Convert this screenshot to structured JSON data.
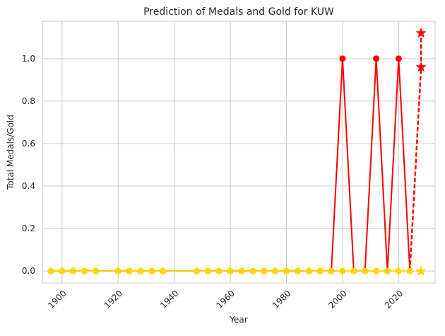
{
  "chart_data": {
    "type": "line",
    "title": "Prediction of Medals and Gold for KUW",
    "xlabel": "Year",
    "ylabel": "Total Medals/Gold",
    "xlim": [
      1893,
      2033
    ],
    "ylim": [
      -0.056,
      1.176
    ],
    "xticks": [
      1900,
      1920,
      1940,
      1960,
      1980,
      2000,
      2020
    ],
    "yticks": [
      0.0,
      0.2,
      0.4,
      0.6,
      0.8,
      1.0
    ],
    "xtick_labels": [
      "1900",
      "1920",
      "1940",
      "1960",
      "1980",
      "2000",
      "2020"
    ],
    "ytick_labels": [
      "0.0",
      "0.2",
      "0.4",
      "0.6",
      "0.8",
      "1.0"
    ],
    "grid": true,
    "x": [
      1896,
      1900,
      1904,
      1908,
      1912,
      1920,
      1924,
      1928,
      1932,
      1936,
      1948,
      1952,
      1956,
      1960,
      1964,
      1968,
      1972,
      1976,
      1980,
      1984,
      1988,
      1992,
      1996,
      2000,
      2004,
      2008,
      2012,
      2016,
      2020,
      2024
    ],
    "series": [
      {
        "color": "#ff0000",
        "marker": "circle",
        "values": [
          0,
          0,
          0,
          0,
          0,
          0,
          0,
          0,
          0,
          0,
          0,
          0,
          0,
          0,
          0,
          0,
          0,
          0,
          0,
          0,
          0,
          0,
          0,
          1,
          0,
          0,
          1,
          0,
          1,
          0
        ],
        "prediction": {
          "x": [
            2024,
            2028,
            2028
          ],
          "y": [
            0,
            0.96,
            1.12
          ],
          "marker": "star",
          "linestyle": "dashed"
        }
      },
      {
        "color": "#ffd700",
        "marker": "circle",
        "values": [
          0,
          0,
          0,
          0,
          0,
          0,
          0,
          0,
          0,
          0,
          0,
          0,
          0,
          0,
          0,
          0,
          0,
          0,
          0,
          0,
          0,
          0,
          0,
          0,
          0,
          0,
          0,
          0,
          0,
          0
        ],
        "prediction": {
          "x": [
            2024,
            2028
          ],
          "y": [
            0,
            0.0
          ],
          "marker": "star",
          "linestyle": "dashed"
        }
      }
    ]
  }
}
